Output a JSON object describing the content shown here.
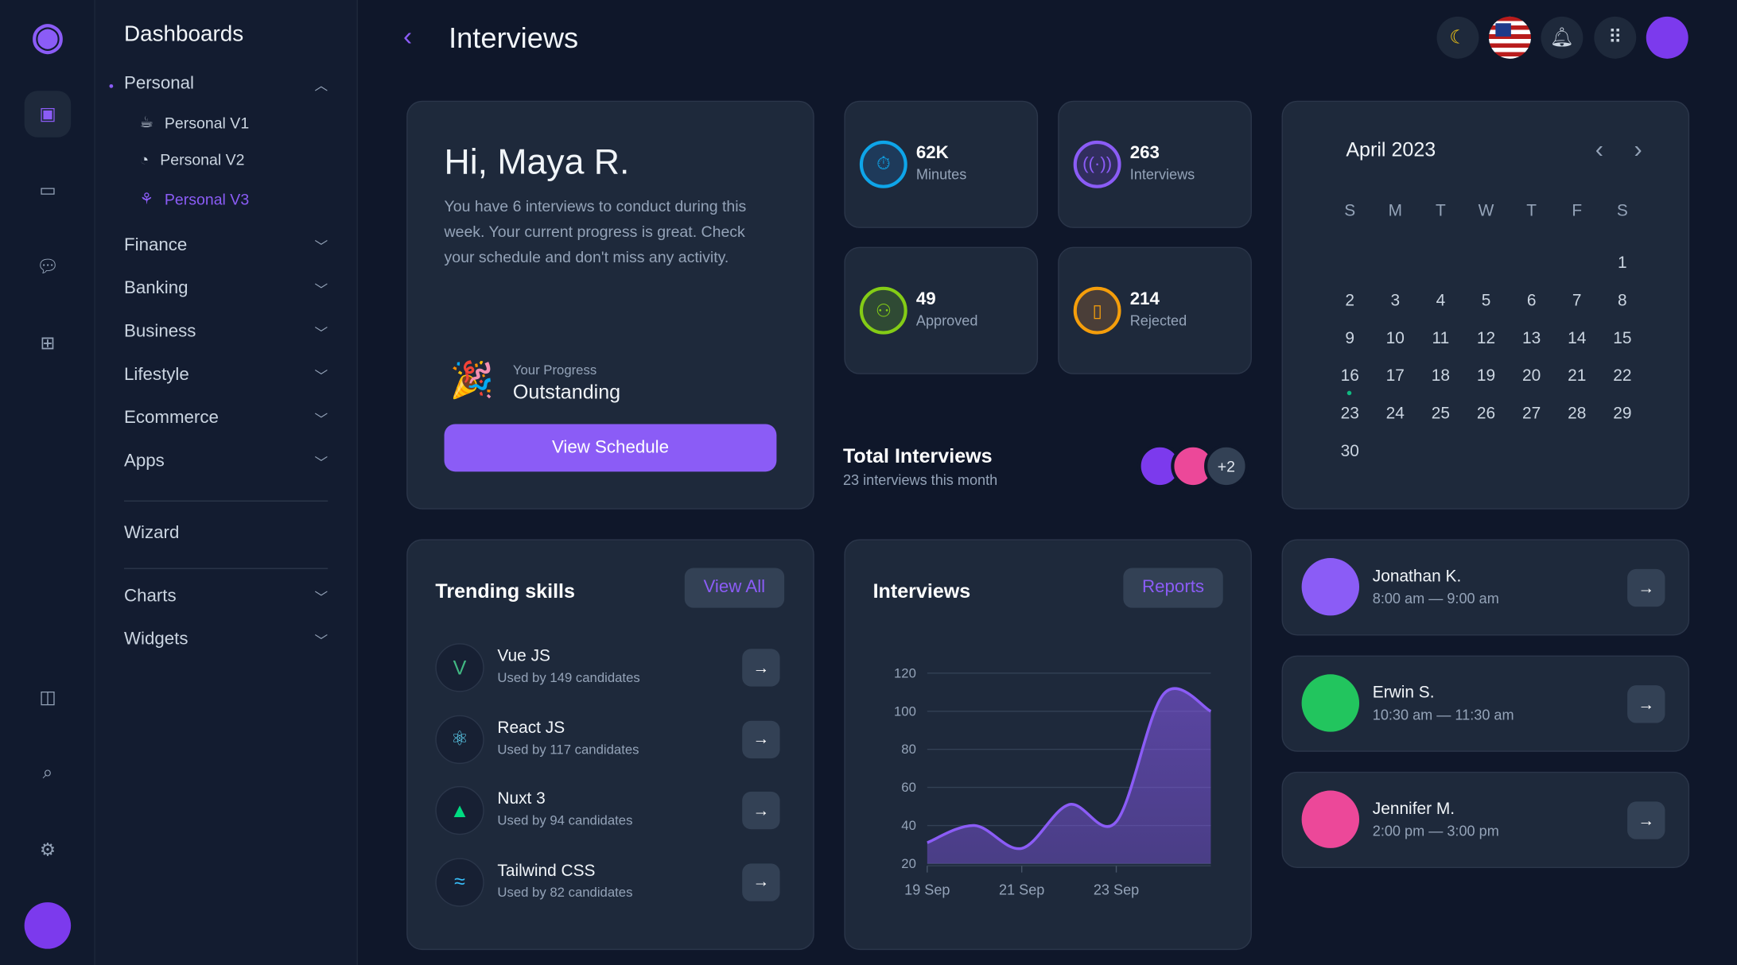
{
  "rail": {
    "icons": [
      "logo-icon",
      "sidebar-layout-icon",
      "window-icon",
      "chat-icon",
      "grid-icon",
      "columns-icon",
      "search-icon",
      "gear-icon",
      "avatar"
    ]
  },
  "sidebar": {
    "title": "Dashboards",
    "personal": {
      "label": "Personal",
      "items": [
        {
          "label": "Personal V1",
          "icon": "coffee-icon"
        },
        {
          "label": "Personal V2",
          "icon": "chart-pie-icon"
        },
        {
          "label": "Personal V3",
          "icon": "plant-icon",
          "active": true
        }
      ]
    },
    "groups": [
      "Finance",
      "Banking",
      "Business",
      "Lifestyle",
      "Ecommerce",
      "Apps"
    ],
    "wizard": "Wizard",
    "groups2": [
      "Charts",
      "Widgets"
    ]
  },
  "header": {
    "title": "Interviews",
    "icons": [
      "moon-icon",
      "us-flag-icon",
      "bell-icon",
      "apps-icon",
      "avatar"
    ]
  },
  "welcome": {
    "greeting": "Hi, Maya R.",
    "text": "You have 6 interviews to conduct during this week. Your current progress is great. Check your schedule and don't miss any activity.",
    "progress_label": "Your Progress",
    "progress_value": "Outstanding",
    "button": "View Schedule"
  },
  "stats": [
    {
      "value": "62K",
      "label": "Minutes",
      "icon": "stopwatch-icon",
      "color": "#0ea5e9"
    },
    {
      "value": "263",
      "label": "Interviews",
      "icon": "broadcast-icon",
      "color": "#8b5cf6"
    },
    {
      "value": "49",
      "label": "Approved",
      "icon": "user-plus-icon",
      "color": "#84cc16"
    },
    {
      "value": "214",
      "label": "Rejected",
      "icon": "door-icon",
      "color": "#f59e0b"
    }
  ],
  "total": {
    "title": "Total Interviews",
    "subtitle": "23 interviews this month",
    "more": "+2"
  },
  "calendar": {
    "month": "April 2023",
    "weekdays": [
      "S",
      "M",
      "T",
      "W",
      "T",
      "F",
      "S"
    ],
    "first_weekday": 6,
    "days": 30,
    "marked_day": 16
  },
  "skills": {
    "title": "Trending skills",
    "button": "View All",
    "items": [
      {
        "name": "Vue JS",
        "sub": "Used by 149 candidates",
        "icon": "vue-icon",
        "color": "#41b883"
      },
      {
        "name": "React JS",
        "sub": "Used by 117 candidates",
        "icon": "react-icon",
        "color": "#61dafb"
      },
      {
        "name": "Nuxt 3",
        "sub": "Used by 94 candidates",
        "icon": "nuxt-icon",
        "color": "#00dc82"
      },
      {
        "name": "Tailwind CSS",
        "sub": "Used by 82 candidates",
        "icon": "tailwind-icon",
        "color": "#38bdf8"
      }
    ]
  },
  "interviews_chart": {
    "title": "Interviews",
    "button": "Reports"
  },
  "chart_data": {
    "type": "area",
    "x": [
      "19 Sep",
      "20 Sep",
      "21 Sep",
      "22 Sep",
      "23 Sep",
      "24 Sep",
      "25 Sep"
    ],
    "values": [
      31,
      40,
      28,
      51,
      42,
      109,
      100
    ],
    "xticks": [
      "19 Sep",
      "21 Sep",
      "23 Sep"
    ],
    "yticks": [
      20,
      40,
      60,
      80,
      100,
      120
    ],
    "ylim": [
      20,
      120
    ],
    "grid": true,
    "color": "#8b5cf6"
  },
  "people": [
    {
      "name": "Jonathan K.",
      "time": "8:00 am — 9:00 am",
      "color": "#8b5cf6"
    },
    {
      "name": "Erwin S.",
      "time": "10:30 am — 11:30 am",
      "color": "#22c55e"
    },
    {
      "name": "Jennifer M.",
      "time": "2:00 pm — 3:00 pm",
      "color": "#ec4899"
    }
  ]
}
